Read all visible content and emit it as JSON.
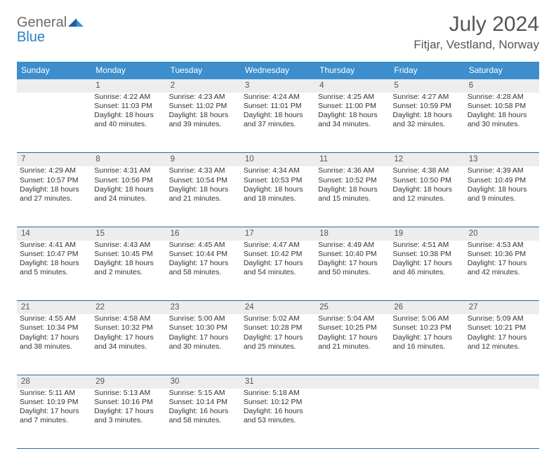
{
  "brand": {
    "part1": "General",
    "part2": "Blue"
  },
  "title": "July 2024",
  "location": "Fitjar, Vestland, Norway",
  "colors": {
    "header_bg": "#3c8ecc",
    "header_text": "#ffffff",
    "daynum_bg": "#ededed",
    "daynum_text": "#555555",
    "row_divider": "#2a6aa0",
    "title_text": "#555555",
    "body_text": "#333333",
    "logo_gray": "#6a6a6a",
    "logo_blue": "#2a7fc4"
  },
  "weekdays": [
    "Sunday",
    "Monday",
    "Tuesday",
    "Wednesday",
    "Thursday",
    "Friday",
    "Saturday"
  ],
  "weeks": [
    {
      "nums": [
        "",
        "1",
        "2",
        "3",
        "4",
        "5",
        "6"
      ],
      "cells": [
        [],
        [
          "Sunrise: 4:22 AM",
          "Sunset: 11:03 PM",
          "Daylight: 18 hours and 40 minutes."
        ],
        [
          "Sunrise: 4:23 AM",
          "Sunset: 11:02 PM",
          "Daylight: 18 hours and 39 minutes."
        ],
        [
          "Sunrise: 4:24 AM",
          "Sunset: 11:01 PM",
          "Daylight: 18 hours and 37 minutes."
        ],
        [
          "Sunrise: 4:25 AM",
          "Sunset: 11:00 PM",
          "Daylight: 18 hours and 34 minutes."
        ],
        [
          "Sunrise: 4:27 AM",
          "Sunset: 10:59 PM",
          "Daylight: 18 hours and 32 minutes."
        ],
        [
          "Sunrise: 4:28 AM",
          "Sunset: 10:58 PM",
          "Daylight: 18 hours and 30 minutes."
        ]
      ]
    },
    {
      "nums": [
        "7",
        "8",
        "9",
        "10",
        "11",
        "12",
        "13"
      ],
      "cells": [
        [
          "Sunrise: 4:29 AM",
          "Sunset: 10:57 PM",
          "Daylight: 18 hours and 27 minutes."
        ],
        [
          "Sunrise: 4:31 AM",
          "Sunset: 10:56 PM",
          "Daylight: 18 hours and 24 minutes."
        ],
        [
          "Sunrise: 4:33 AM",
          "Sunset: 10:54 PM",
          "Daylight: 18 hours and 21 minutes."
        ],
        [
          "Sunrise: 4:34 AM",
          "Sunset: 10:53 PM",
          "Daylight: 18 hours and 18 minutes."
        ],
        [
          "Sunrise: 4:36 AM",
          "Sunset: 10:52 PM",
          "Daylight: 18 hours and 15 minutes."
        ],
        [
          "Sunrise: 4:38 AM",
          "Sunset: 10:50 PM",
          "Daylight: 18 hours and 12 minutes."
        ],
        [
          "Sunrise: 4:39 AM",
          "Sunset: 10:49 PM",
          "Daylight: 18 hours and 9 minutes."
        ]
      ]
    },
    {
      "nums": [
        "14",
        "15",
        "16",
        "17",
        "18",
        "19",
        "20"
      ],
      "cells": [
        [
          "Sunrise: 4:41 AM",
          "Sunset: 10:47 PM",
          "Daylight: 18 hours and 5 minutes."
        ],
        [
          "Sunrise: 4:43 AM",
          "Sunset: 10:45 PM",
          "Daylight: 18 hours and 2 minutes."
        ],
        [
          "Sunrise: 4:45 AM",
          "Sunset: 10:44 PM",
          "Daylight: 17 hours and 58 minutes."
        ],
        [
          "Sunrise: 4:47 AM",
          "Sunset: 10:42 PM",
          "Daylight: 17 hours and 54 minutes."
        ],
        [
          "Sunrise: 4:49 AM",
          "Sunset: 10:40 PM",
          "Daylight: 17 hours and 50 minutes."
        ],
        [
          "Sunrise: 4:51 AM",
          "Sunset: 10:38 PM",
          "Daylight: 17 hours and 46 minutes."
        ],
        [
          "Sunrise: 4:53 AM",
          "Sunset: 10:36 PM",
          "Daylight: 17 hours and 42 minutes."
        ]
      ]
    },
    {
      "nums": [
        "21",
        "22",
        "23",
        "24",
        "25",
        "26",
        "27"
      ],
      "cells": [
        [
          "Sunrise: 4:55 AM",
          "Sunset: 10:34 PM",
          "Daylight: 17 hours and 38 minutes."
        ],
        [
          "Sunrise: 4:58 AM",
          "Sunset: 10:32 PM",
          "Daylight: 17 hours and 34 minutes."
        ],
        [
          "Sunrise: 5:00 AM",
          "Sunset: 10:30 PM",
          "Daylight: 17 hours and 30 minutes."
        ],
        [
          "Sunrise: 5:02 AM",
          "Sunset: 10:28 PM",
          "Daylight: 17 hours and 25 minutes."
        ],
        [
          "Sunrise: 5:04 AM",
          "Sunset: 10:25 PM",
          "Daylight: 17 hours and 21 minutes."
        ],
        [
          "Sunrise: 5:06 AM",
          "Sunset: 10:23 PM",
          "Daylight: 17 hours and 16 minutes."
        ],
        [
          "Sunrise: 5:09 AM",
          "Sunset: 10:21 PM",
          "Daylight: 17 hours and 12 minutes."
        ]
      ]
    },
    {
      "nums": [
        "28",
        "29",
        "30",
        "31",
        "",
        "",
        ""
      ],
      "cells": [
        [
          "Sunrise: 5:11 AM",
          "Sunset: 10:19 PM",
          "Daylight: 17 hours and 7 minutes."
        ],
        [
          "Sunrise: 5:13 AM",
          "Sunset: 10:16 PM",
          "Daylight: 17 hours and 3 minutes."
        ],
        [
          "Sunrise: 5:15 AM",
          "Sunset: 10:14 PM",
          "Daylight: 16 hours and 58 minutes."
        ],
        [
          "Sunrise: 5:18 AM",
          "Sunset: 10:12 PM",
          "Daylight: 16 hours and 53 minutes."
        ],
        [],
        [],
        []
      ]
    }
  ]
}
